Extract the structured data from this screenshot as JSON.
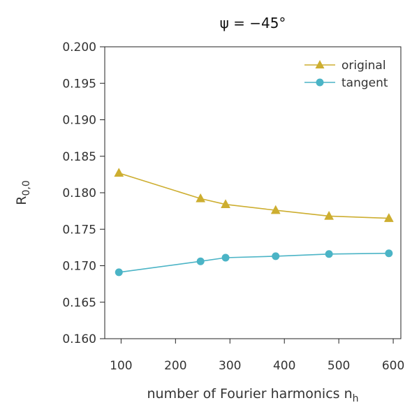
{
  "chart_data": {
    "type": "line",
    "title": "ψ = −45°",
    "xlabel": "number of Fourier harmonics n",
    "xlabel_sub": "h",
    "ylabel": "R",
    "ylabel_sub": "0,0",
    "x": [
      96,
      246,
      292,
      384,
      482,
      592
    ],
    "xticks": [
      100,
      200,
      300,
      400,
      500,
      600
    ],
    "xtick_labels": [
      "100",
      "200",
      "300",
      "400",
      "500",
      "600"
    ],
    "xlim": [
      70,
      614
    ],
    "ylim": [
      0.16,
      0.2
    ],
    "yticks": [
      0.16,
      0.165,
      0.17,
      0.175,
      0.18,
      0.185,
      0.19,
      0.195,
      0.2
    ],
    "ytick_labels": [
      "0.160",
      "0.165",
      "0.170",
      "0.175",
      "0.180",
      "0.185",
      "0.190",
      "0.195",
      "0.200"
    ],
    "grid": false,
    "legend_position": "top-right",
    "series": [
      {
        "name": "original",
        "marker": "triangle",
        "color": "#CDAE30",
        "values": [
          0.1827,
          0.1792,
          0.1784,
          0.1776,
          0.1768,
          0.1765
        ]
      },
      {
        "name": "tangent",
        "marker": "circle",
        "color": "#4BB4C6",
        "values": [
          0.1691,
          0.1706,
          0.1711,
          0.1713,
          0.1716,
          0.1717
        ]
      }
    ]
  }
}
